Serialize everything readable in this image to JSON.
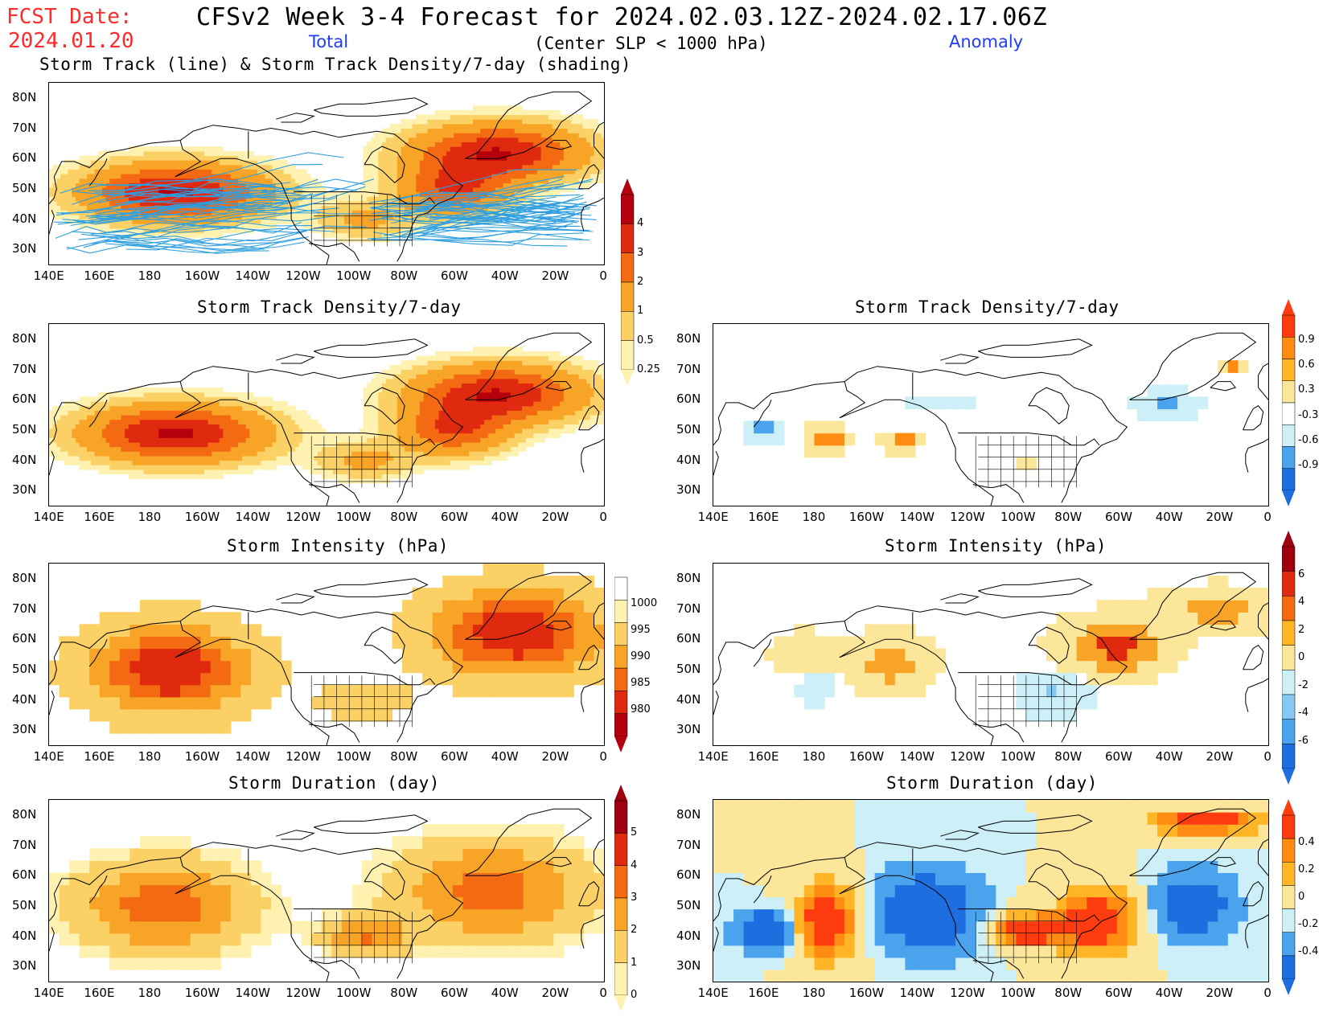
{
  "header": {
    "fcst_label": "FCST Date:",
    "fcst_date": "2024.01.20",
    "title": "CFSv2 Week 3-4 Forecast for 2024.02.03.12Z-2024.02.17.06Z",
    "total_label": "Total",
    "condition": "(Center SLP < 1000 hPa)",
    "anomaly_label": "Anomaly"
  },
  "axes": {
    "lat_labels": [
      "80N",
      "70N",
      "60N",
      "50N",
      "40N",
      "30N"
    ],
    "lon_labels": [
      "140E",
      "160E",
      "180",
      "160W",
      "140W",
      "120W",
      "100W",
      "80W",
      "60W",
      "40W",
      "20W",
      "0"
    ]
  },
  "panels": [
    {
      "id": "total-track",
      "title": "Storm Track (line) & Storm Track Density/7-day (shading)",
      "column": "total",
      "field": "density",
      "tracks": true
    },
    {
      "id": "total-density",
      "title": "Storm Track Density/7-day",
      "column": "total",
      "field": "density"
    },
    {
      "id": "anom-density",
      "title": "Storm Track Density/7-day",
      "column": "anomaly",
      "field": "density-anom"
    },
    {
      "id": "total-intensity",
      "title": "Storm Intensity (hPa)",
      "column": "total",
      "field": "intensity"
    },
    {
      "id": "anom-intensity",
      "title": "Storm Intensity (hPa)",
      "column": "anomaly",
      "field": "intensity-anom"
    },
    {
      "id": "total-duration",
      "title": "Storm Duration (day)",
      "column": "total",
      "field": "duration"
    },
    {
      "id": "anom-duration",
      "title": "Storm Duration (day)",
      "column": "anomaly",
      "field": "duration-anom"
    }
  ],
  "colorbars": [
    {
      "id": "density-total",
      "labels": [
        "4",
        "3",
        "2",
        "1",
        "0.5",
        "0.25"
      ],
      "colors": [
        "#b5000d",
        "#e02a10",
        "#f36a12",
        "#f7a427",
        "#fbd166",
        "#fff2b0"
      ]
    },
    {
      "id": "density-anom",
      "labels": [
        "0.9",
        "0.6",
        "0.3",
        "-0.3",
        "-0.6",
        "-0.9"
      ],
      "colors": [
        "#ff3c10",
        "#ff8c12",
        "#ffb526",
        "#fbe69a",
        "#ffffff",
        "#cdeff8",
        "#4aa3ec",
        "#1e6ee0"
      ]
    },
    {
      "id": "intensity-total",
      "labels": [
        "1000",
        "995",
        "990",
        "985",
        "980"
      ],
      "colors": [
        "#ffffff",
        "#fff2b0",
        "#fbd166",
        "#f7a427",
        "#f36a12",
        "#e02a10",
        "#b5000d"
      ]
    },
    {
      "id": "intensity-anom",
      "labels": [
        "6",
        "4",
        "2",
        "0",
        "-2",
        "-4",
        "-6"
      ],
      "colors": [
        "#9e0010",
        "#e02a10",
        "#f36a12",
        "#ffb526",
        "#fbe69a",
        "#cdeff8",
        "#86c8f2",
        "#4aa3ec",
        "#1e6ee0"
      ]
    },
    {
      "id": "duration-total",
      "labels": [
        "5",
        "4",
        "3",
        "2",
        "1",
        "0"
      ],
      "colors": [
        "#9e0010",
        "#e02a10",
        "#f36a12",
        "#f7a427",
        "#fbd166",
        "#fff2b0"
      ]
    },
    {
      "id": "duration-anom",
      "labels": [
        "0.4",
        "0.2",
        "0",
        "-0.2",
        "-0.4"
      ],
      "colors": [
        "#ff3c10",
        "#ff8c12",
        "#ffb526",
        "#fbe69a",
        "#cdeff8",
        "#4aa3ec",
        "#1e6ee0"
      ]
    }
  ]
}
